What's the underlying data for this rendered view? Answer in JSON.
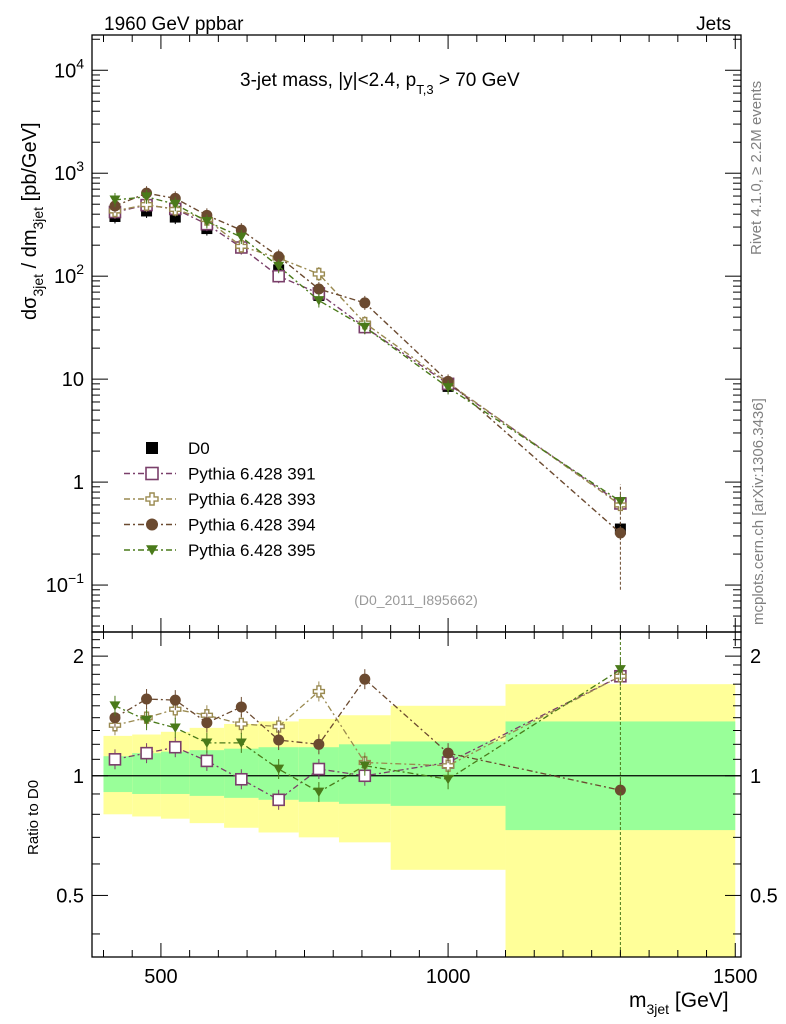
{
  "header": {
    "left": "1960 GeV ppbar",
    "right": "Jets"
  },
  "side_text": {
    "top": "Rivet 4.1.0, ≥ 2.2M events",
    "bottom": "mcplots.cern.ch [arXiv:1306.3436]"
  },
  "chart_data": [
    {
      "type": "scatter",
      "panel": "main",
      "title": "3-jet mass, |y|<2.4, p_T,3 > 70 GeV",
      "watermark": "(D0_2011_I895662)",
      "xlabel": "m_3jet [GeV]",
      "ylabel": "dσ_3jet / dm_3jet [pb/GeV]",
      "yscale": "log",
      "xlim": [
        380,
        1510
      ],
      "ylim": [
        0.035,
        22000
      ],
      "yticks": [
        "10^{-1}",
        "1",
        "10",
        "10^2",
        "10^3",
        "10^4"
      ],
      "x": [
        420,
        475,
        525,
        580,
        640,
        705,
        775,
        855,
        1000,
        1300
      ],
      "legend_position": "left-lower",
      "series": [
        {
          "name": "D0",
          "color": "#000000",
          "marker": "square",
          "values": [
            380,
            430,
            375,
            290,
            190,
            115,
            65,
            32,
            8.5,
            0.35
          ]
        },
        {
          "name": "Pythia 6.428 391",
          "color": "#7a3f6a",
          "marker": "open-square",
          "values": [
            420,
            490,
            450,
            320,
            190,
            100,
            68,
            32,
            9.0,
            0.62
          ]
        },
        {
          "name": "Pythia 6.428 393",
          "color": "#9a8a50",
          "marker": "open-cross",
          "values": [
            430,
            495,
            445,
            355,
            195,
            150,
            105,
            35,
            9.2,
            0.6
          ]
        },
        {
          "name": "Pythia 6.428 394",
          "color": "#6b4a30",
          "marker": "circle",
          "values": [
            480,
            640,
            570,
            390,
            280,
            155,
            75,
            55,
            9.5,
            0.32
          ]
        },
        {
          "name": "Pythia 6.428 395",
          "color": "#4a7a1a",
          "marker": "triangle-down",
          "values": [
            550,
            590,
            500,
            340,
            240,
            125,
            58,
            32,
            8.3,
            0.65
          ]
        }
      ]
    },
    {
      "type": "scatter",
      "panel": "ratio",
      "ylabel": "Ratio to D0",
      "xlabel": "m_3jet [GeV]",
      "ylim": [
        0.35,
        2.3
      ],
      "xticks": [
        500,
        1000,
        1500
      ],
      "yticks": [
        0.5,
        1,
        2
      ],
      "bin_edges": [
        400,
        450,
        500,
        550,
        610,
        670,
        740,
        810,
        900,
        1100,
        1500
      ],
      "band_inner": [
        [
          0.91,
          1.12
        ],
        [
          0.9,
          1.14
        ],
        [
          0.9,
          1.15
        ],
        [
          0.89,
          1.16
        ],
        [
          0.88,
          1.17
        ],
        [
          0.87,
          1.18
        ],
        [
          0.86,
          1.18
        ],
        [
          0.85,
          1.2
        ],
        [
          0.84,
          1.22
        ],
        [
          0.73,
          1.37
        ]
      ],
      "band_outer": [
        [
          0.8,
          1.26
        ],
        [
          0.79,
          1.27
        ],
        [
          0.78,
          1.29
        ],
        [
          0.76,
          1.32
        ],
        [
          0.74,
          1.35
        ],
        [
          0.72,
          1.37
        ],
        [
          0.7,
          1.39
        ],
        [
          0.68,
          1.42
        ],
        [
          0.58,
          1.5
        ],
        [
          0.3,
          1.7
        ]
      ],
      "x": [
        420,
        475,
        525,
        580,
        640,
        705,
        775,
        855,
        1000,
        1300
      ],
      "series": [
        {
          "name": "Pythia 6.428 391",
          "color": "#7a3f6a",
          "marker": "open-square",
          "values": [
            1.1,
            1.14,
            1.18,
            1.09,
            0.98,
            0.87,
            1.04,
            1.0,
            1.08,
            1.78
          ]
        },
        {
          "name": "Pythia 6.428 393",
          "color": "#9a8a50",
          "marker": "open-cross",
          "values": [
            1.34,
            1.4,
            1.47,
            1.42,
            1.35,
            1.33,
            1.63,
            1.08,
            1.06,
            1.78
          ]
        },
        {
          "name": "Pythia 6.428 394",
          "color": "#6b4a30",
          "marker": "circle",
          "values": [
            1.4,
            1.56,
            1.55,
            1.36,
            1.49,
            1.23,
            1.2,
            1.75,
            1.14,
            0.92
          ]
        },
        {
          "name": "Pythia 6.428 395",
          "color": "#4a7a1a",
          "marker": "triangle-down",
          "values": [
            1.5,
            1.38,
            1.32,
            1.21,
            1.21,
            1.04,
            0.91,
            1.06,
            0.98,
            1.85
          ]
        }
      ]
    }
  ]
}
